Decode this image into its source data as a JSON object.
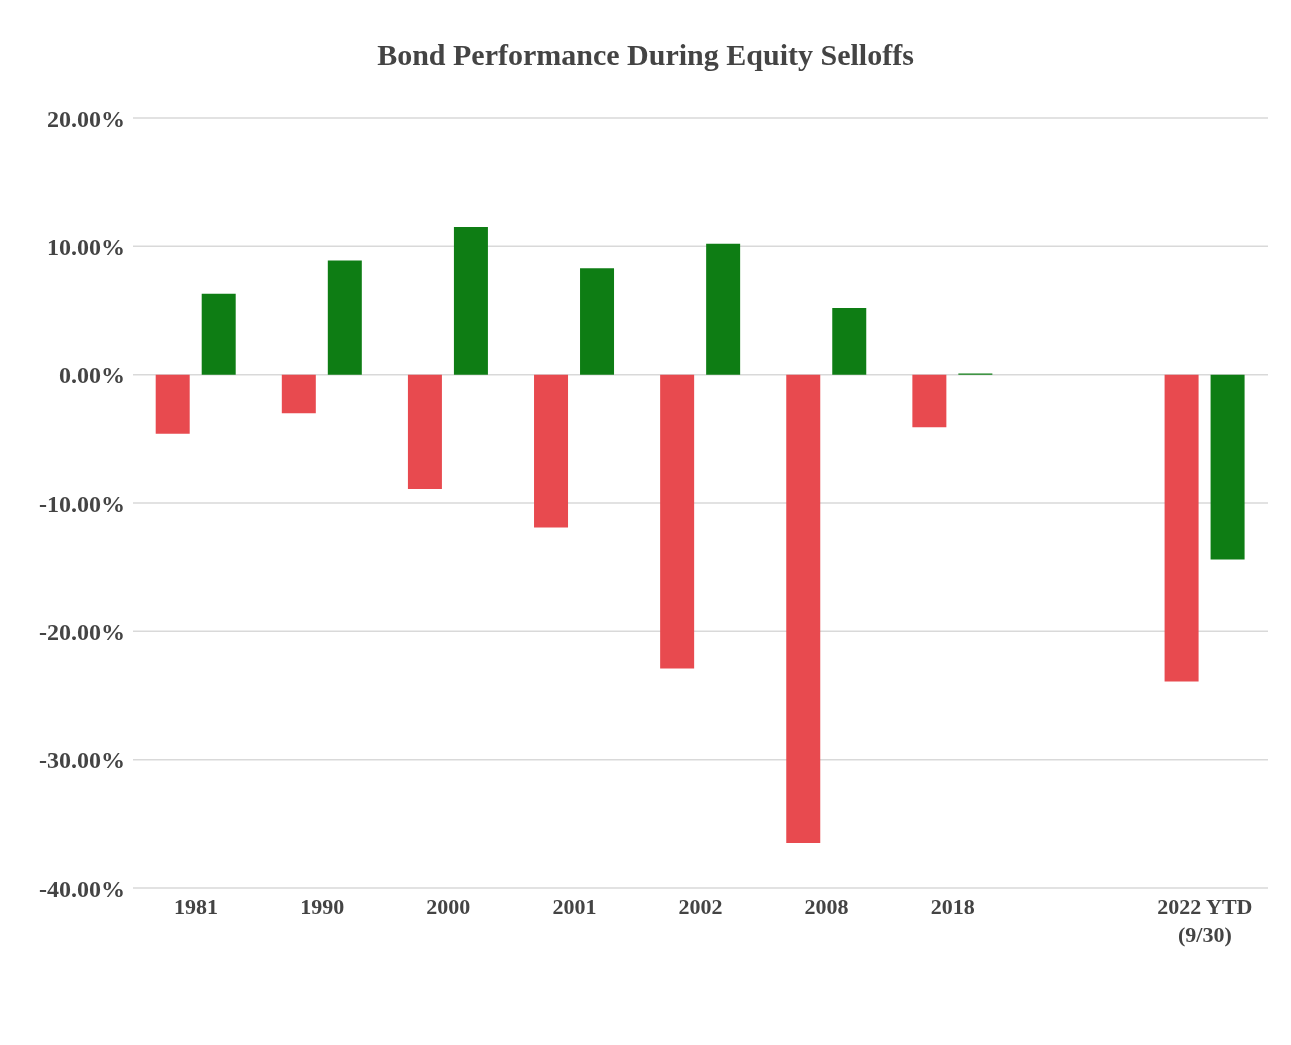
{
  "chart_data": {
    "type": "bar",
    "title": "Bond Performance During Equity  Selloffs",
    "categories": [
      "1981",
      "1990",
      "2000",
      "2001",
      "2002",
      "2008",
      "2018",
      null,
      "2022 YTD (9/30)"
    ],
    "series": [
      {
        "color": "#e84a4f",
        "values": [
          -4.6,
          -3.0,
          -8.9,
          -11.9,
          -22.9,
          -36.5,
          -4.1,
          null,
          -23.9
        ]
      },
      {
        "color": "#0e7d14",
        "values": [
          6.3,
          8.9,
          11.5,
          8.3,
          10.2,
          5.2,
          0.1,
          null,
          -14.4
        ]
      }
    ],
    "ylim": [
      -40,
      20
    ],
    "yticks": [
      {
        "value": -40,
        "label": "-40.00%"
      },
      {
        "value": -30,
        "label": "-30.00%"
      },
      {
        "value": -20,
        "label": "-20.00%"
      },
      {
        "value": -10,
        "label": "-10.00%"
      },
      {
        "value": 0,
        "label": "0.00%"
      },
      {
        "value": 10,
        "label": "10.00%"
      },
      {
        "value": 20,
        "label": "20.00%"
      }
    ],
    "grid": "y"
  }
}
